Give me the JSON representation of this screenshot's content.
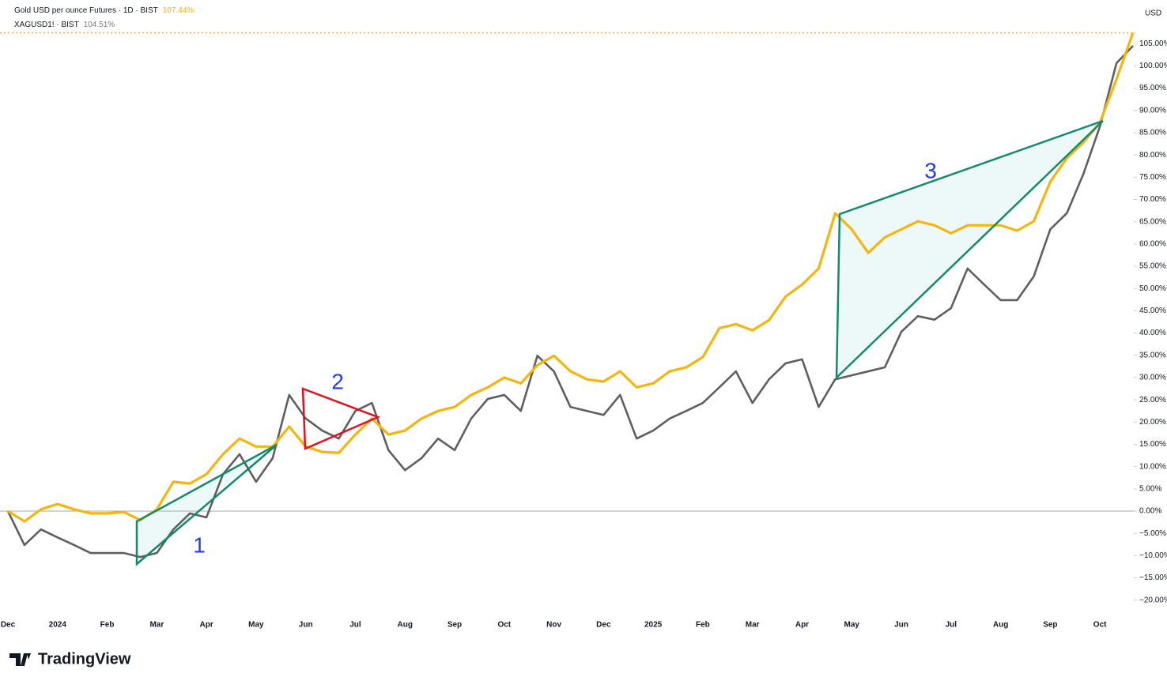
{
  "chart_data": {
    "type": "line",
    "y_axis_label": "USD",
    "watermark": "TradingView",
    "annotations": [
      "1",
      "2",
      "3"
    ],
    "categories": [
      "Dec",
      null,
      null,
      "2024",
      null,
      null,
      "Feb",
      null,
      null,
      "Mar",
      null,
      null,
      "Apr",
      null,
      null,
      "May",
      null,
      null,
      "Jun",
      null,
      null,
      "Jul",
      null,
      null,
      "Aug",
      null,
      null,
      "Sep",
      null,
      null,
      "Oct",
      null,
      null,
      "Nov",
      null,
      null,
      "Dec",
      null,
      null,
      "2025",
      null,
      null,
      "Feb",
      null,
      null,
      "Mar",
      null,
      null,
      "Apr",
      null,
      null,
      "May",
      null,
      null,
      "Jun",
      null,
      null,
      "Jul",
      null,
      null,
      "Aug",
      null,
      null,
      "Sep",
      null,
      null,
      "Oct",
      null,
      null
    ],
    "series": [
      {
        "name": "Gold USD per ounce Futures · 1D · BIST",
        "color": "#f5b50f",
        "values": [
          0,
          -2.3,
          0.4,
          1.6,
          0.4,
          -0.5,
          -0.5,
          -0.2,
          -2,
          0.4,
          6.6,
          6.2,
          8.3,
          12.8,
          16.3,
          14.5,
          14.5,
          19,
          14.5,
          13.3,
          13.1,
          17.2,
          20.8,
          17.2,
          18.1,
          20.8,
          22.5,
          23.4,
          26.1,
          27.8,
          30,
          28.7,
          32.8,
          34.9,
          31.4,
          29.6,
          29.1,
          31.4,
          27.8,
          28.7,
          31.4,
          32.3,
          34.6,
          41.1,
          42,
          40.6,
          42.9,
          48.2,
          50.9,
          54.5,
          66.9,
          63.3,
          58,
          61.5,
          63.3,
          65.1,
          64.2,
          62.4,
          64.2,
          64.2,
          64.2,
          63,
          65.1,
          74,
          79.3,
          82.8,
          87.3,
          97,
          107.44
        ],
        "value_labels": [
          null,
          null,
          null,
          null,
          null,
          null,
          null,
          null,
          null,
          null,
          null,
          null,
          null,
          null,
          null,
          null,
          null,
          null,
          null,
          null,
          null,
          null,
          null,
          null,
          null,
          null,
          null,
          null,
          null,
          null,
          null,
          null,
          null,
          null,
          null,
          null,
          null,
          null,
          null,
          null,
          null,
          null,
          null,
          null,
          null,
          null,
          null,
          null,
          null,
          null,
          null,
          null,
          null,
          null,
          null,
          null,
          null,
          null,
          null,
          null,
          null,
          null,
          null,
          null,
          null,
          null,
          null,
          null,
          "107.44%"
        ]
      },
      {
        "name": "XAGUSD1! · BIST",
        "color": "#5f5f5f",
        "values": [
          0,
          -7.6,
          -4.1,
          -5.9,
          -7.6,
          -9.4,
          -9.4,
          -9.4,
          -10.3,
          -9.4,
          -4.1,
          -0.5,
          -1.4,
          8.3,
          12.8,
          6.6,
          11.9,
          26.1,
          20.8,
          18.1,
          16.3,
          22.5,
          24.3,
          13.7,
          9.2,
          11.9,
          16.3,
          13.7,
          20.8,
          25.2,
          26.1,
          22.5,
          34.9,
          31.4,
          23.4,
          22.5,
          21.6,
          26.1,
          16.3,
          18.1,
          20.8,
          22.5,
          24.3,
          27.8,
          31.4,
          24.3,
          29.6,
          33.2,
          34.1,
          23.4,
          29.6,
          30.5,
          31.4,
          32.3,
          40.3,
          43.8,
          43,
          45.6,
          54.5,
          50.9,
          47.4,
          47.4,
          52.7,
          63.3,
          66.9,
          75.7,
          86.4,
          100.6,
          104.51
        ],
        "value_labels": [
          null,
          null,
          null,
          null,
          null,
          null,
          null,
          null,
          null,
          null,
          null,
          null,
          null,
          null,
          null,
          null,
          null,
          null,
          null,
          null,
          null,
          null,
          null,
          null,
          null,
          null,
          null,
          null,
          null,
          null,
          null,
          null,
          null,
          null,
          null,
          null,
          null,
          null,
          null,
          null,
          null,
          null,
          null,
          null,
          null,
          null,
          null,
          null,
          null,
          null,
          null,
          null,
          null,
          null,
          null,
          null,
          null,
          null,
          null,
          null,
          null,
          null,
          null,
          null,
          null,
          null,
          null,
          null,
          "104.51%"
        ]
      }
    ],
    "ylim": [
      -22.7,
      114.8
    ],
    "yticks": [
      {
        "value": -20,
        "label": "−20.00%"
      },
      {
        "value": -15,
        "label": "−15.00%"
      },
      {
        "value": -10,
        "label": "−10.00%"
      },
      {
        "value": -5,
        "label": "−5.00%"
      },
      {
        "value": 0,
        "label": "0.00%"
      },
      {
        "value": 5,
        "label": "5.00%"
      },
      {
        "value": 10,
        "label": "10.00%"
      },
      {
        "value": 15,
        "label": "15.00%"
      },
      {
        "value": 20,
        "label": "20.00%"
      },
      {
        "value": 25,
        "label": "25.00%"
      },
      {
        "value": 30,
        "label": "30.00%"
      },
      {
        "value": 35,
        "label": "35.00%"
      },
      {
        "value": 40,
        "label": "40.00%"
      },
      {
        "value": 45,
        "label": "45.00%"
      },
      {
        "value": 50,
        "label": "50.00%"
      },
      {
        "value": 55,
        "label": "55.00%"
      },
      {
        "value": 60,
        "label": "60.00%"
      },
      {
        "value": 65,
        "label": "65.00%"
      },
      {
        "value": 70,
        "label": "70.00%"
      },
      {
        "value": 75,
        "label": "75.00%"
      },
      {
        "value": 80,
        "label": "80.00%"
      },
      {
        "value": 85,
        "label": "85.00%"
      },
      {
        "value": 90,
        "label": "90.00%"
      },
      {
        "value": 95,
        "label": "95.00%"
      },
      {
        "value": 100,
        "label": "100.00%"
      },
      {
        "value": 105,
        "label": "105.00%"
      }
    ],
    "grid": false
  }
}
